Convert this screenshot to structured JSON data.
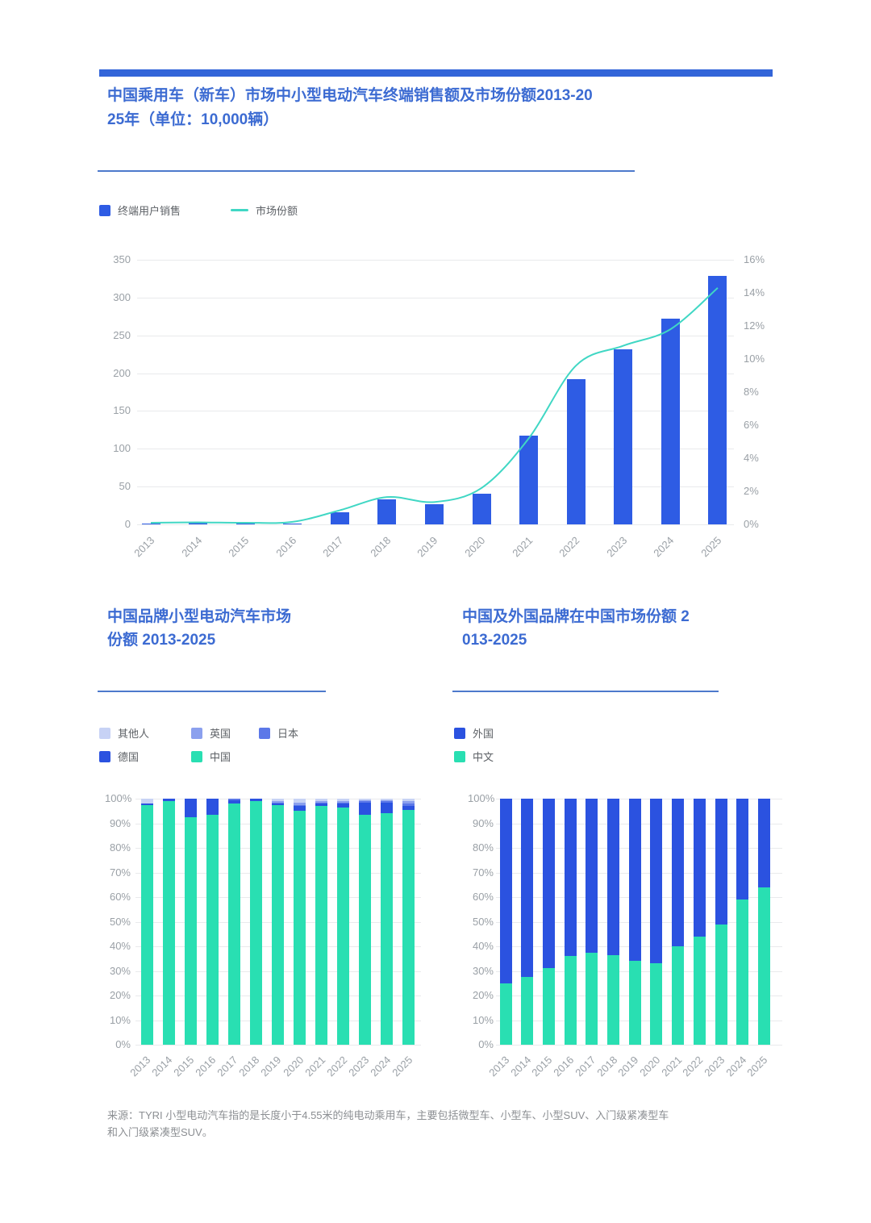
{
  "page": {
    "source_note": "来源：TYRI 小型电动汽车指的是长度小于4.55米的纯电动乘用车，主要包括微型车、小型车、小型SUV、入门级紧凑型车和入门级紧凑型SUV。"
  },
  "colors": {
    "accent_bar": "#3365d9",
    "title_text": "#3c6bd2",
    "divider": "#4d79cc",
    "axis_text": "#9aa0a6",
    "legend_text": "#5d6166",
    "grid": "#e9eaec",
    "source_text": "#8c8f93"
  },
  "chart_data": [
    {
      "id": "sales-and-share",
      "type": "bar",
      "subtype": "bar+line",
      "title": "中国乘用车（新车）市场中小型电动汽车终端销售额及市场份额2013-2025年（单位：10,000辆）",
      "unit": "10,000辆",
      "categories": [
        "2013",
        "2014",
        "2015",
        "2016",
        "2017",
        "2018",
        "2019",
        "2020",
        "2021",
        "2022",
        "2023",
        "2024",
        "2025"
      ],
      "bar_series": {
        "name": "终端用户销售",
        "color": "#2e5ce4",
        "axis": "left",
        "values": [
          1.5,
          2,
          1.5,
          1.5,
          16,
          33,
          27,
          41,
          117,
          192,
          232,
          272,
          329
        ]
      },
      "line_series": {
        "name": "市场份额",
        "color": "#40d7c4",
        "axis": "right",
        "values_percent": [
          0.1,
          0.12,
          0.1,
          0.15,
          0.85,
          1.65,
          1.35,
          2.2,
          5.2,
          9.6,
          10.8,
          11.8,
          14.3
        ]
      },
      "left_axis": {
        "min": 0,
        "max": 350,
        "ticks": [
          0,
          50,
          100,
          150,
          200,
          250,
          300,
          350
        ]
      },
      "right_axis": {
        "min": 0,
        "max": 16,
        "ticks": [
          0,
          2,
          4,
          6,
          8,
          10,
          12,
          14,
          16
        ],
        "suffix": "%"
      },
      "grid": true,
      "legend_position": "top-left"
    },
    {
      "id": "china-brand-small-ev-share",
      "type": "bar",
      "subtype": "stacked-100",
      "title": "中国品牌小型电动汽车市场份额 2013-2025",
      "categories": [
        "2013",
        "2014",
        "2015",
        "2016",
        "2017",
        "2018",
        "2019",
        "2020",
        "2021",
        "2022",
        "2023",
        "2024",
        "2025"
      ],
      "series": [
        {
          "name": "其他人",
          "color": "#c7d2f5",
          "values": [
            2,
            0,
            0,
            0,
            0,
            0,
            1,
            1.5,
            1,
            1,
            0.5,
            0.5,
            1
          ]
        },
        {
          "name": "英国",
          "color": "#8ba0ee",
          "values": [
            0,
            0,
            0,
            0,
            0,
            0,
            0.5,
            1,
            0.5,
            0.5,
            0.5,
            0.5,
            1
          ]
        },
        {
          "name": "日本",
          "color": "#5c78e8",
          "values": [
            0,
            0,
            0,
            0,
            0.5,
            0,
            0.5,
            0.5,
            0.5,
            0.5,
            0.5,
            0.5,
            1
          ]
        },
        {
          "name": "德国",
          "color": "#2b52e0",
          "values": [
            0.5,
            1,
            7.5,
            6.5,
            1.5,
            1,
            0.5,
            2,
            1,
            1.5,
            5,
            4.5,
            1.5
          ]
        },
        {
          "name": "中国",
          "color": "#29dfb2",
          "values": [
            97.5,
            99,
            92.5,
            93.5,
            98,
            99,
            97.5,
            95,
            97,
            96.5,
            93.5,
            94,
            95.5
          ]
        }
      ],
      "stack_order_bottom_to_top": [
        "中国",
        "德国",
        "日本",
        "英国",
        "其他人"
      ],
      "y_axis": {
        "min": 0,
        "max": 100,
        "tick_step": 10,
        "suffix": "%"
      },
      "grid": true,
      "legend_position": "top-left"
    },
    {
      "id": "china-vs-foreign-share",
      "type": "bar",
      "subtype": "stacked-100",
      "title": "中国及外国品牌在中国市场份额 2013-2025",
      "categories": [
        "2013",
        "2014",
        "2015",
        "2016",
        "2017",
        "2018",
        "2019",
        "2020",
        "2021",
        "2022",
        "2023",
        "2024",
        "2025"
      ],
      "series": [
        {
          "name": "外国",
          "color": "#2b52e0",
          "values": [
            75,
            72.5,
            69,
            64,
            62.5,
            63.5,
            66,
            67,
            60,
            56,
            51,
            41,
            36
          ]
        },
        {
          "name": "中文",
          "color": "#29dfb2",
          "values": [
            25,
            27.5,
            31,
            36,
            37.5,
            36.5,
            34,
            33,
            40,
            44,
            49,
            59,
            64
          ]
        }
      ],
      "stack_order_bottom_to_top": [
        "中文",
        "外国"
      ],
      "y_axis": {
        "min": 0,
        "max": 100,
        "tick_step": 10,
        "suffix": "%"
      },
      "grid": true,
      "legend_position": "top-left"
    }
  ]
}
